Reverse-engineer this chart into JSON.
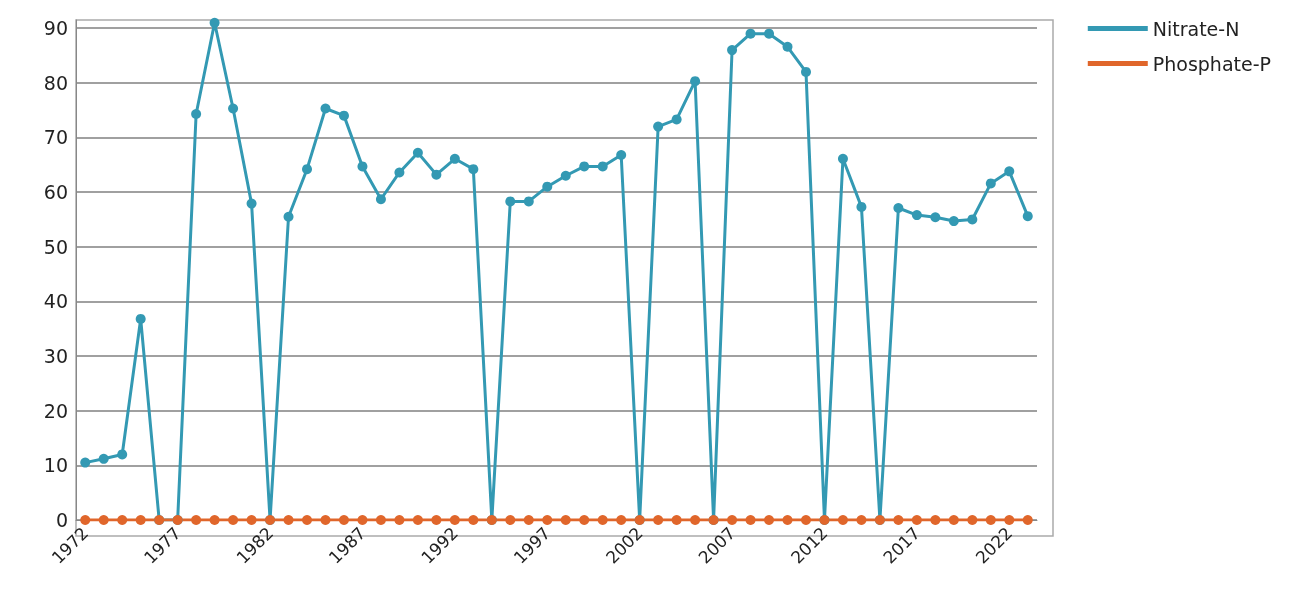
{
  "chart_data": {
    "type": "line",
    "categories": [
      "1972",
      null,
      null,
      null,
      null,
      "1977",
      null,
      null,
      null,
      null,
      "1982",
      null,
      null,
      null,
      null,
      "1987",
      null,
      null,
      null,
      null,
      "1992",
      null,
      null,
      null,
      null,
      "1997",
      null,
      null,
      null,
      null,
      "2002",
      null,
      null,
      null,
      null,
      "2007",
      null,
      null,
      null,
      null,
      "2012",
      null,
      null,
      null,
      null,
      "2017",
      null,
      null,
      null,
      null,
      "2022",
      null
    ],
    "series": [
      {
        "name": "Nitrate-N",
        "color": "#3399b3",
        "values": [
          10.5,
          11.2,
          12,
          36.8,
          0,
          0,
          74.3,
          91,
          75.3,
          57.9,
          0,
          55.5,
          64.2,
          75.3,
          74,
          64.7,
          58.7,
          63.6,
          67.2,
          63.2,
          66.1,
          64.2,
          0,
          58.3,
          58.3,
          61,
          63,
          64.7,
          64.7,
          66.8,
          0,
          72,
          73.3,
          80.3,
          0,
          86,
          89,
          89,
          86.6,
          82,
          0,
          66.1,
          57.3,
          0,
          57.1,
          55.8,
          55.4,
          54.7,
          55,
          61.6,
          63.8,
          55.6
        ]
      },
      {
        "name": "Phosphate-P",
        "color": "#e0662b",
        "values": [
          0,
          0,
          0,
          0,
          0,
          0,
          0,
          0,
          0,
          0,
          0,
          0,
          0,
          0,
          0,
          0,
          0,
          0,
          0,
          0,
          0,
          0,
          0,
          0,
          0,
          0,
          0,
          0,
          0,
          0,
          0,
          0,
          0,
          0,
          0,
          0,
          0,
          0,
          0,
          0,
          0,
          0,
          0,
          0,
          0,
          0,
          0,
          0,
          0,
          0,
          0,
          0
        ]
      }
    ],
    "ylim": [
      0,
      91.5
    ],
    "yticks": [
      0,
      10,
      20,
      30,
      40,
      50,
      60,
      70,
      80,
      90
    ],
    "grid": "y",
    "legend": "top right",
    "marker": "circle"
  }
}
